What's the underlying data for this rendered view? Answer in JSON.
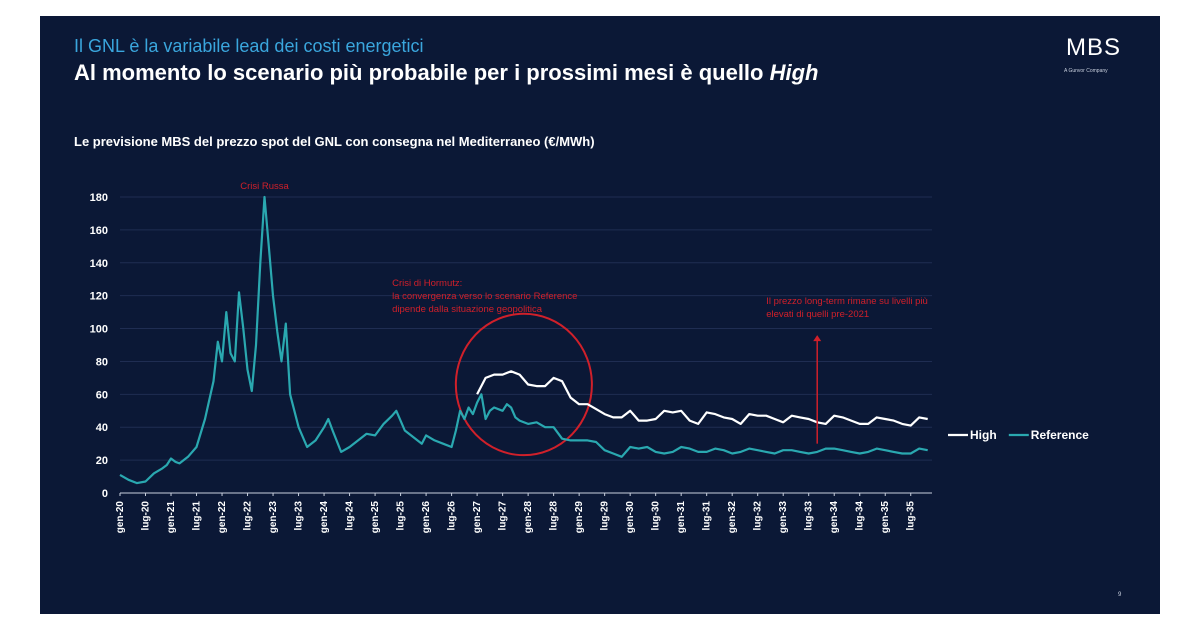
{
  "slide": {
    "kicker": "Il GNL è la variabile lead dei costi energetici",
    "headline_main": "Al momento lo scenario più probabile per i prossimi mesi è quello ",
    "headline_emph": "High",
    "logo": "MBS",
    "logo_tagline": "A Gunvor Company",
    "page_number": "9"
  },
  "chart_data": {
    "type": "line",
    "title": "Le previsione MBS del prezzo spot del GNL con consegna nel Mediterraneo (€/MWh)",
    "xlabel": "",
    "ylabel": "",
    "ylim": [
      0,
      180
    ],
    "yticks": [
      0,
      20,
      40,
      60,
      80,
      100,
      120,
      140,
      160,
      180
    ],
    "xlim": [
      0,
      191
    ],
    "xtick_labels": [
      "gen-20",
      "lug-20",
      "gen-21",
      "lug-21",
      "gen-22",
      "lug-22",
      "gen-23",
      "lug-23",
      "gen-24",
      "lug-24",
      "gen-25",
      "lug-25",
      "gen-26",
      "lug-26",
      "gen-27",
      "lug-27",
      "gen-28",
      "lug-28",
      "gen-29",
      "lug-29",
      "gen-30",
      "lug-30",
      "gen-31",
      "lug-31",
      "gen-32",
      "lug-32",
      "gen-33",
      "lug-33",
      "gen-34",
      "lug-34",
      "gen-35",
      "lug-35"
    ],
    "grid": "horizontal",
    "legend_position": "right",
    "colors": {
      "High": "#ffffff",
      "Reference": "#2aa8b0",
      "annotation": "#d0202a"
    },
    "series": [
      {
        "name": "Reference",
        "points": [
          [
            0,
            11
          ],
          [
            2,
            8
          ],
          [
            4,
            6
          ],
          [
            6,
            7
          ],
          [
            8,
            12
          ],
          [
            10,
            15
          ],
          [
            11,
            17
          ],
          [
            12,
            21
          ],
          [
            13,
            19
          ],
          [
            14,
            18
          ],
          [
            16,
            22
          ],
          [
            18,
            28
          ],
          [
            20,
            45
          ],
          [
            22,
            68
          ],
          [
            23,
            92
          ],
          [
            24,
            80
          ],
          [
            25,
            110
          ],
          [
            26,
            85
          ],
          [
            27,
            80
          ],
          [
            28,
            122
          ],
          [
            29,
            100
          ],
          [
            30,
            75
          ],
          [
            31,
            62
          ],
          [
            32,
            90
          ],
          [
            33,
            140
          ],
          [
            34,
            180
          ],
          [
            35,
            150
          ],
          [
            36,
            120
          ],
          [
            37,
            98
          ],
          [
            38,
            80
          ],
          [
            39,
            103
          ],
          [
            40,
            60
          ],
          [
            42,
            40
          ],
          [
            44,
            28
          ],
          [
            46,
            32
          ],
          [
            48,
            40
          ],
          [
            49,
            45
          ],
          [
            50,
            38
          ],
          [
            52,
            25
          ],
          [
            54,
            28
          ],
          [
            56,
            32
          ],
          [
            58,
            36
          ],
          [
            60,
            35
          ],
          [
            62,
            42
          ],
          [
            64,
            47
          ],
          [
            65,
            50
          ],
          [
            67,
            38
          ],
          [
            69,
            34
          ],
          [
            71,
            30
          ],
          [
            72,
            35
          ],
          [
            74,
            32
          ],
          [
            76,
            30
          ],
          [
            78,
            28
          ],
          [
            79,
            38
          ],
          [
            80,
            50
          ],
          [
            81,
            45
          ],
          [
            82,
            52
          ],
          [
            83,
            48
          ],
          [
            84,
            55
          ],
          [
            85,
            60
          ],
          [
            86,
            45
          ],
          [
            87,
            50
          ],
          [
            88,
            52
          ],
          [
            90,
            50
          ],
          [
            91,
            54
          ],
          [
            92,
            52
          ],
          [
            93,
            46
          ],
          [
            94,
            44
          ],
          [
            96,
            42
          ],
          [
            98,
            43
          ],
          [
            100,
            40
          ],
          [
            102,
            40
          ],
          [
            104,
            33
          ],
          [
            106,
            32
          ],
          [
            108,
            32
          ],
          [
            110,
            32
          ],
          [
            112,
            31
          ],
          [
            114,
            26
          ],
          [
            116,
            24
          ],
          [
            118,
            22
          ],
          [
            120,
            28
          ],
          [
            122,
            27
          ],
          [
            124,
            28
          ],
          [
            126,
            25
          ],
          [
            128,
            24
          ],
          [
            130,
            25
          ],
          [
            132,
            28
          ],
          [
            134,
            27
          ],
          [
            136,
            25
          ],
          [
            138,
            25
          ],
          [
            140,
            27
          ],
          [
            142,
            26
          ],
          [
            144,
            24
          ],
          [
            146,
            25
          ],
          [
            148,
            27
          ],
          [
            150,
            26
          ],
          [
            152,
            25
          ],
          [
            154,
            24
          ],
          [
            156,
            26
          ],
          [
            158,
            26
          ],
          [
            160,
            25
          ],
          [
            162,
            24
          ],
          [
            164,
            25
          ],
          [
            166,
            27
          ],
          [
            168,
            27
          ],
          [
            170,
            26
          ],
          [
            172,
            25
          ],
          [
            174,
            24
          ],
          [
            176,
            25
          ],
          [
            178,
            27
          ],
          [
            180,
            26
          ],
          [
            182,
            25
          ],
          [
            184,
            24
          ],
          [
            186,
            24
          ],
          [
            188,
            27
          ],
          [
            190,
            26
          ]
        ]
      },
      {
        "name": "High",
        "points": [
          [
            84,
            60
          ],
          [
            86,
            70
          ],
          [
            88,
            72
          ],
          [
            90,
            72
          ],
          [
            92,
            74
          ],
          [
            94,
            72
          ],
          [
            96,
            66
          ],
          [
            98,
            65
          ],
          [
            100,
            65
          ],
          [
            102,
            70
          ],
          [
            104,
            68
          ],
          [
            106,
            58
          ],
          [
            108,
            54
          ],
          [
            110,
            54
          ],
          [
            112,
            51
          ],
          [
            114,
            48
          ],
          [
            116,
            46
          ],
          [
            118,
            46
          ],
          [
            120,
            50
          ],
          [
            122,
            44
          ],
          [
            124,
            44
          ],
          [
            126,
            45
          ],
          [
            128,
            50
          ],
          [
            130,
            49
          ],
          [
            132,
            50
          ],
          [
            134,
            44
          ],
          [
            136,
            42
          ],
          [
            138,
            49
          ],
          [
            140,
            48
          ],
          [
            142,
            46
          ],
          [
            144,
            45
          ],
          [
            146,
            42
          ],
          [
            148,
            48
          ],
          [
            150,
            47
          ],
          [
            152,
            47
          ],
          [
            154,
            45
          ],
          [
            156,
            43
          ],
          [
            158,
            47
          ],
          [
            160,
            46
          ],
          [
            162,
            45
          ],
          [
            164,
            43
          ],
          [
            166,
            42
          ],
          [
            168,
            47
          ],
          [
            170,
            46
          ],
          [
            172,
            44
          ],
          [
            174,
            42
          ],
          [
            176,
            42
          ],
          [
            178,
            46
          ],
          [
            180,
            45
          ],
          [
            182,
            44
          ],
          [
            184,
            42
          ],
          [
            186,
            41
          ],
          [
            188,
            46
          ],
          [
            190,
            45
          ]
        ]
      }
    ],
    "annotations": [
      {
        "text": [
          "Crisi Russa"
        ],
        "anchor": [
          34,
          185
        ]
      },
      {
        "text": [
          "Crisi di Hormutz:",
          "la convergenza verso lo scenario Reference",
          "dipende dalla situazione geopolitica"
        ],
        "anchor": [
          64,
          126
        ]
      },
      {
        "text": [
          "Il prezzo long-term rimane su livelli più",
          "elevati di quelli pre-2021"
        ],
        "anchor": [
          152,
          115
        ]
      }
    ],
    "highlight_ellipse": {
      "center": [
        95,
        66
      ],
      "rx_units": 16,
      "ry_units": 43
    },
    "arrow": {
      "from": [
        164,
        30
      ],
      "to": [
        164,
        96
      ]
    }
  }
}
